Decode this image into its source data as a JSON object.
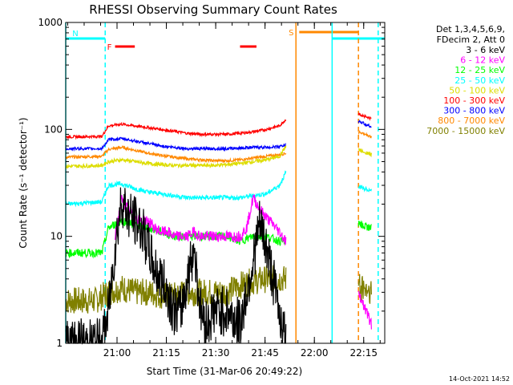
{
  "chart_data": {
    "type": "line",
    "title": "RHESSI Observing Summary Count Rates",
    "xlabel": "Start Time (31-Mar-06 20:49:22)",
    "ylabel": "Count Rate (s⁻¹ detector⁻¹)",
    "y_scale": "log",
    "ylim": [
      1,
      1000
    ],
    "xlim_min": [
      -5,
      92
    ],
    "x_ticks": [
      "21:00",
      "21:15",
      "21:30",
      "21:45",
      "22:00",
      "22:15"
    ],
    "y_ticks": [
      "1",
      "10",
      "100",
      "1000"
    ],
    "legend_header": [
      "Det 1,3,4,5,6,9,",
      "FDecim 2, Att 0"
    ],
    "legend_placement": "right, outside plot",
    "series": [
      {
        "name": "3 - 6 keV",
        "color": "#000000",
        "points": [
          [
            -5,
            1
          ],
          [
            6,
            1
          ],
          [
            8,
            2
          ],
          [
            10,
            8
          ],
          [
            12,
            22
          ],
          [
            14,
            16
          ],
          [
            16,
            14
          ],
          [
            18,
            12
          ],
          [
            20,
            8
          ],
          [
            22,
            5
          ],
          [
            24,
            4
          ],
          [
            26,
            3
          ],
          [
            28,
            2
          ],
          [
            30,
            2
          ],
          [
            32,
            4
          ],
          [
            34,
            8
          ],
          [
            36,
            2
          ],
          [
            38,
            1.5
          ],
          [
            40,
            2
          ],
          [
            44,
            2
          ],
          [
            48,
            1.5
          ],
          [
            50,
            3
          ],
          [
            52,
            6
          ],
          [
            54,
            13
          ],
          [
            56,
            8
          ],
          [
            58,
            4
          ],
          [
            60,
            2
          ],
          [
            62,
            1
          ]
        ]
      },
      {
        "name": "6 - 12 keV",
        "color": "#ff00ff",
        "points": [
          [
            10,
            10
          ],
          [
            12,
            22
          ],
          [
            14,
            18
          ],
          [
            16,
            15
          ],
          [
            18,
            14
          ],
          [
            20,
            14
          ],
          [
            22,
            12
          ],
          [
            24,
            11
          ],
          [
            26,
            11
          ],
          [
            28,
            10
          ],
          [
            30,
            10
          ],
          [
            32,
            10
          ],
          [
            34,
            11
          ],
          [
            36,
            10
          ],
          [
            40,
            10
          ],
          [
            44,
            10
          ],
          [
            48,
            10
          ],
          [
            50,
            12
          ],
          [
            52,
            23
          ],
          [
            54,
            18
          ],
          [
            56,
            15
          ],
          [
            58,
            13
          ],
          [
            60,
            11
          ],
          [
            62,
            9
          ]
        ]
      },
      {
        "name": "12 - 25 keV",
        "color": "#00ff00",
        "points": [
          [
            -5,
            7
          ],
          [
            6,
            7
          ],
          [
            8,
            12
          ],
          [
            12,
            14
          ],
          [
            16,
            13
          ],
          [
            20,
            12
          ],
          [
            24,
            11
          ],
          [
            28,
            10
          ],
          [
            32,
            10
          ],
          [
            36,
            10
          ],
          [
            40,
            10
          ],
          [
            44,
            10
          ],
          [
            48,
            9
          ],
          [
            52,
            10
          ],
          [
            56,
            10
          ],
          [
            60,
            9
          ],
          [
            62,
            9
          ]
        ]
      },
      {
        "name": "25 - 50 keV",
        "color": "#00ffff",
        "points": [
          [
            -5,
            20
          ],
          [
            6,
            21
          ],
          [
            8,
            30
          ],
          [
            12,
            31
          ],
          [
            16,
            28
          ],
          [
            20,
            26
          ],
          [
            24,
            25
          ],
          [
            28,
            24
          ],
          [
            32,
            23
          ],
          [
            36,
            23
          ],
          [
            40,
            23
          ],
          [
            44,
            23
          ],
          [
            48,
            23
          ],
          [
            52,
            24
          ],
          [
            56,
            25
          ],
          [
            60,
            30
          ],
          [
            62,
            40
          ]
        ]
      },
      {
        "name": "50 - 100 keV",
        "color": "#dddd00",
        "points": [
          [
            -5,
            45
          ],
          [
            6,
            46
          ],
          [
            8,
            50
          ],
          [
            12,
            52
          ],
          [
            16,
            50
          ],
          [
            20,
            48
          ],
          [
            24,
            47
          ],
          [
            28,
            46
          ],
          [
            32,
            46
          ],
          [
            36,
            46
          ],
          [
            40,
            46
          ],
          [
            44,
            47
          ],
          [
            48,
            48
          ],
          [
            52,
            50
          ],
          [
            56,
            52
          ],
          [
            60,
            56
          ],
          [
            62,
            70
          ]
        ]
      },
      {
        "name": "100 - 300 keV",
        "color": "#ff0000",
        "points": [
          [
            -5,
            85
          ],
          [
            6,
            86
          ],
          [
            8,
            108
          ],
          [
            12,
            112
          ],
          [
            16,
            108
          ],
          [
            20,
            104
          ],
          [
            24,
            100
          ],
          [
            28,
            96
          ],
          [
            32,
            92
          ],
          [
            36,
            90
          ],
          [
            40,
            90
          ],
          [
            44,
            90
          ],
          [
            48,
            92
          ],
          [
            52,
            95
          ],
          [
            56,
            100
          ],
          [
            60,
            108
          ],
          [
            62,
            125
          ]
        ]
      },
      {
        "name": "300 - 800 keV",
        "color": "#0000ff",
        "points": [
          [
            -5,
            66
          ],
          [
            6,
            66
          ],
          [
            8,
            80
          ],
          [
            12,
            82
          ],
          [
            16,
            78
          ],
          [
            20,
            74
          ],
          [
            24,
            70
          ],
          [
            28,
            68
          ],
          [
            32,
            66
          ],
          [
            36,
            66
          ],
          [
            40,
            66
          ],
          [
            44,
            66
          ],
          [
            48,
            67
          ],
          [
            52,
            68
          ],
          [
            56,
            68
          ],
          [
            60,
            69
          ],
          [
            62,
            72
          ]
        ]
      },
      {
        "name": "800 - 7000 keV",
        "color": "#ff8800",
        "points": [
          [
            -5,
            55
          ],
          [
            6,
            56
          ],
          [
            8,
            65
          ],
          [
            12,
            68
          ],
          [
            16,
            64
          ],
          [
            20,
            60
          ],
          [
            24,
            57
          ],
          [
            28,
            55
          ],
          [
            32,
            53
          ],
          [
            36,
            52
          ],
          [
            40,
            51
          ],
          [
            44,
            51
          ],
          [
            48,
            52
          ],
          [
            52,
            54
          ],
          [
            56,
            56
          ],
          [
            60,
            58
          ],
          [
            62,
            60
          ]
        ]
      },
      {
        "name": "7000 - 15000 keV",
        "color": "#808000",
        "points": [
          [
            -5,
            2.5
          ],
          [
            4,
            2.5
          ],
          [
            8,
            3
          ],
          [
            12,
            3.3
          ],
          [
            16,
            3
          ],
          [
            20,
            3
          ],
          [
            24,
            2.8
          ],
          [
            28,
            2.8
          ],
          [
            32,
            3
          ],
          [
            36,
            3
          ],
          [
            40,
            3
          ],
          [
            44,
            3
          ],
          [
            48,
            3.5
          ],
          [
            52,
            3.8
          ],
          [
            56,
            4
          ],
          [
            60,
            4
          ],
          [
            62,
            4
          ]
        ]
      }
    ],
    "series_after_gap": {
      "x": [
        84,
        88
      ],
      "values": {
        "100 - 300 keV": [
          140,
          125
        ],
        "300 - 800 keV": [
          120,
          105
        ],
        "800 - 7000 keV": [
          95,
          85
        ],
        "50 - 100 keV": [
          65,
          58
        ],
        "25 - 50 keV": [
          29,
          27
        ],
        "12 - 25 keV": [
          13,
          12
        ],
        "7000 - 15000 keV": [
          3.5,
          3
        ],
        "6 - 12 keV": [
          3,
          1.5
        ]
      }
    },
    "flags": [
      {
        "label": "N",
        "color": "#00ffff",
        "x_start": -5,
        "x_end": 7
      },
      {
        "label": "F",
        "color": "#ff0000",
        "x_start": 10,
        "x_end": 16
      },
      {
        "label": "",
        "color": "#ff0000",
        "x_start": 48,
        "x_end": 53
      },
      {
        "label": "S",
        "color": "#ff8800",
        "x_start": 66,
        "x_end": 84
      },
      {
        "label": "",
        "color": "#00ffff",
        "x_start": 76,
        "x_end": 92
      }
    ],
    "vertical_lines": [
      {
        "x": -5,
        "color": "#00ffff",
        "style": "solid"
      },
      {
        "x": 7,
        "color": "#00ffff",
        "style": "dashed"
      },
      {
        "x": 65,
        "color": "#ff8800",
        "style": "solid"
      },
      {
        "x": 76,
        "color": "#00ffff",
        "style": "solid"
      },
      {
        "x": 84,
        "color": "#ff8800",
        "style": "dashed"
      },
      {
        "x": 90,
        "color": "#00ffff",
        "style": "dashed"
      }
    ]
  },
  "footer_timestamp": "14-Oct-2021 14:52"
}
